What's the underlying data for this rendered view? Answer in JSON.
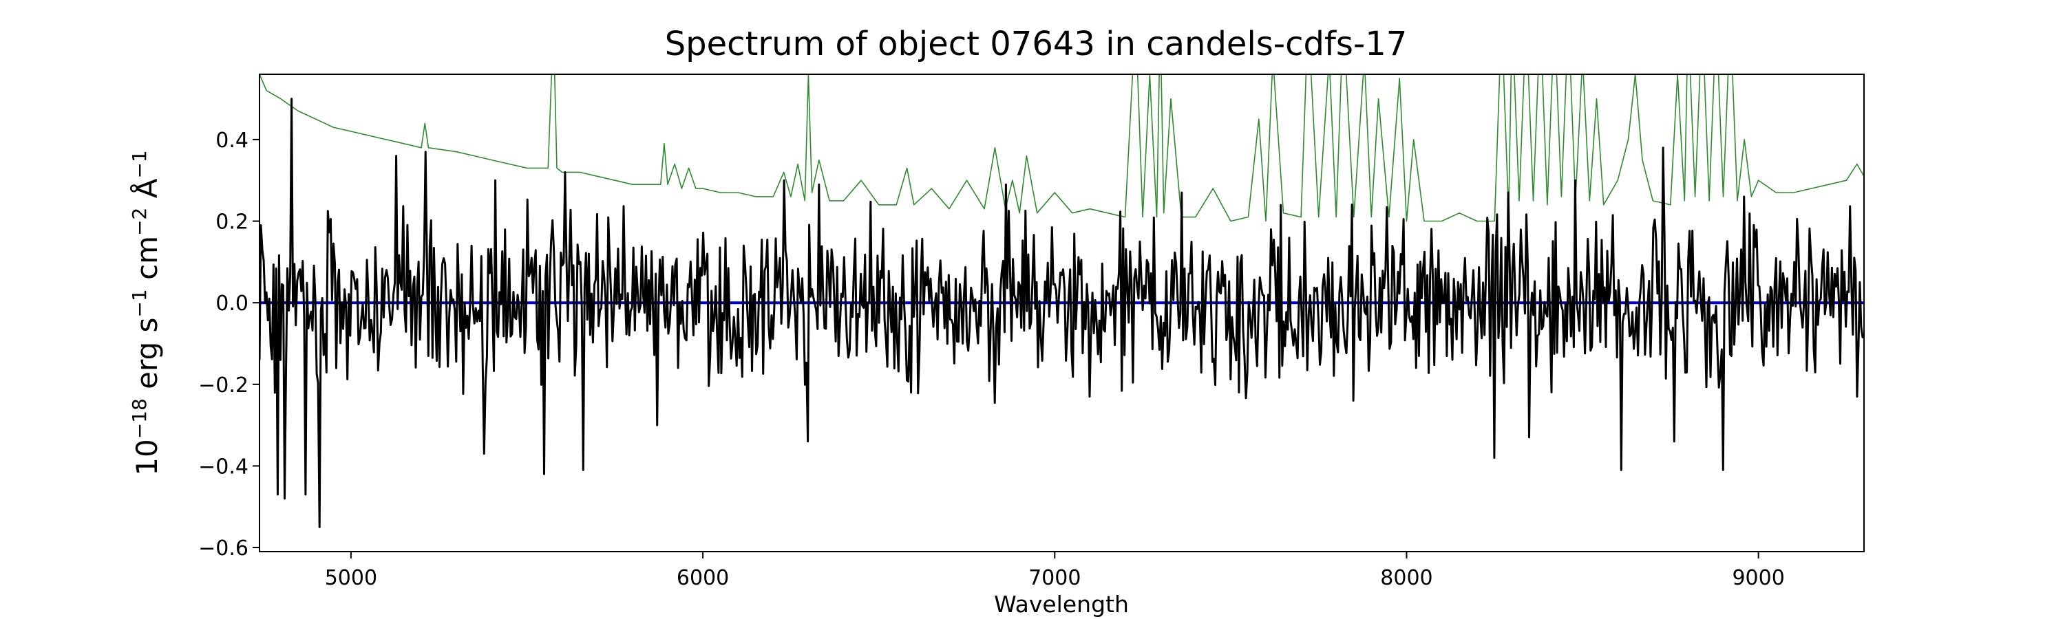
{
  "chart_data": {
    "type": "line",
    "title": "Spectrum of object 07643 in candels-cdfs-17",
    "xlabel": "Wavelength",
    "ylabel": {
      "base": "10",
      "exp1": "−18",
      "erg": " erg s",
      "exp2": "−1",
      "cm": " cm",
      "exp3": "−2",
      "unit": " Å",
      "exp4": "−1"
    },
    "xlim": [
      4740,
      9300
    ],
    "ylim": [
      -0.61,
      0.56
    ],
    "xticks": [
      5000,
      6000,
      7000,
      8000,
      9000
    ],
    "xtick_labels": [
      "5000",
      "6000",
      "7000",
      "8000",
      "9000"
    ],
    "yticks": [
      0.4,
      0.2,
      0.0,
      -0.2,
      -0.4,
      -0.6
    ],
    "ytick_labels": [
      "0.4",
      "0.2",
      "0.0",
      "−0.2",
      "−0.4",
      "−0.6"
    ],
    "grid": false,
    "legend": "none",
    "series": [
      {
        "role": "error",
        "color": "#2e8b2e",
        "x": [
          4740,
          4760,
          4800,
          4850,
          4900,
          4950,
          5000,
          5050,
          5100,
          5150,
          5200,
          5210,
          5220,
          5300,
          5350,
          5400,
          5450,
          5500,
          5560,
          5570,
          5577,
          5585,
          5600,
          5650,
          5700,
          5750,
          5800,
          5850,
          5880,
          5890,
          5900,
          5920,
          5940,
          5960,
          5980,
          6000,
          6050,
          6100,
          6150,
          6200,
          6230,
          6250,
          6270,
          6290,
          6300,
          6310,
          6330,
          6360,
          6400,
          6450,
          6500,
          6550,
          6580,
          6600,
          6650,
          6700,
          6750,
          6800,
          6830,
          6860,
          6880,
          6900,
          6920,
          6950,
          7000,
          7050,
          7100,
          7150,
          7200,
          7230,
          7250,
          7270,
          7290,
          7300,
          7310,
          7330,
          7360,
          7400,
          7450,
          7500,
          7550,
          7580,
          7600,
          7620,
          7650,
          7700,
          7720,
          7750,
          7780,
          7800,
          7820,
          7850,
          7880,
          7900,
          7920,
          7950,
          7980,
          8000,
          8020,
          8050,
          8100,
          8150,
          8200,
          8250,
          8270,
          8290,
          8300,
          8320,
          8340,
          8360,
          8380,
          8400,
          8420,
          8440,
          8460,
          8480,
          8500,
          8520,
          8540,
          8560,
          8600,
          8630,
          8650,
          8670,
          8700,
          8750,
          8770,
          8790,
          8800,
          8820,
          8840,
          8860,
          8880,
          8900,
          8920,
          8940,
          8960,
          8980,
          9000,
          9050,
          9100,
          9150,
          9200,
          9250,
          9280,
          9300
        ],
        "y": [
          0.56,
          0.52,
          0.5,
          0.47,
          0.45,
          0.43,
          0.42,
          0.41,
          0.4,
          0.39,
          0.38,
          0.44,
          0.38,
          0.37,
          0.36,
          0.35,
          0.34,
          0.33,
          0.33,
          0.56,
          0.62,
          0.33,
          0.32,
          0.32,
          0.31,
          0.3,
          0.29,
          0.29,
          0.29,
          0.39,
          0.29,
          0.34,
          0.28,
          0.33,
          0.28,
          0.28,
          0.27,
          0.27,
          0.26,
          0.26,
          0.32,
          0.26,
          0.34,
          0.25,
          0.56,
          0.27,
          0.35,
          0.25,
          0.25,
          0.3,
          0.24,
          0.24,
          0.33,
          0.24,
          0.28,
          0.23,
          0.3,
          0.23,
          0.38,
          0.23,
          0.3,
          0.22,
          0.36,
          0.22,
          0.27,
          0.22,
          0.23,
          0.22,
          0.21,
          0.7,
          0.21,
          0.56,
          0.21,
          0.7,
          0.22,
          0.5,
          0.21,
          0.21,
          0.28,
          0.2,
          0.21,
          0.45,
          0.2,
          0.6,
          0.22,
          0.21,
          0.7,
          0.21,
          0.6,
          0.21,
          0.7,
          0.21,
          0.6,
          0.21,
          0.5,
          0.21,
          0.55,
          0.2,
          0.4,
          0.2,
          0.2,
          0.22,
          0.2,
          0.2,
          0.7,
          0.22,
          0.7,
          0.25,
          0.7,
          0.25,
          0.7,
          0.24,
          0.7,
          0.26,
          0.7,
          0.25,
          0.6,
          0.25,
          0.5,
          0.24,
          0.3,
          0.4,
          0.56,
          0.35,
          0.25,
          0.24,
          0.56,
          0.25,
          0.7,
          0.26,
          0.7,
          0.25,
          0.7,
          0.26,
          0.7,
          0.25,
          0.4,
          0.26,
          0.3,
          0.27,
          0.27,
          0.28,
          0.29,
          0.3,
          0.34,
          0.31
        ]
      },
      {
        "role": "model",
        "color": "#0000cc",
        "x": [
          4740,
          9300
        ],
        "y": [
          0.0,
          0.0
        ]
      },
      {
        "role": "flux",
        "color": "#000000",
        "generator": "noisy-spectrum",
        "x_start": 4740,
        "x_end": 9300,
        "noise_sigma": 0.12,
        "seed": 7643,
        "anchors_x": [
          4745,
          4790,
          4810,
          4830,
          4870,
          4910,
          5130,
          5210,
          5380,
          5410,
          5550,
          5610,
          5660,
          5870,
          6230,
          6300,
          6330,
          6590,
          6860,
          7100,
          7360,
          7850,
          8250,
          8290,
          8350,
          8480,
          8610,
          8730,
          8760,
          8900,
          8960,
          9280
        ],
        "anchors_y": [
          0.19,
          -0.47,
          -0.48,
          0.5,
          -0.47,
          -0.55,
          0.36,
          0.37,
          -0.37,
          0.3,
          -0.42,
          0.32,
          -0.41,
          -0.3,
          0.3,
          -0.34,
          0.29,
          -0.22,
          0.29,
          -0.23,
          0.27,
          -0.24,
          -0.38,
          0.27,
          -0.33,
          0.3,
          -0.41,
          0.38,
          -0.34,
          -0.41,
          0.26,
          -0.23
        ]
      }
    ]
  }
}
